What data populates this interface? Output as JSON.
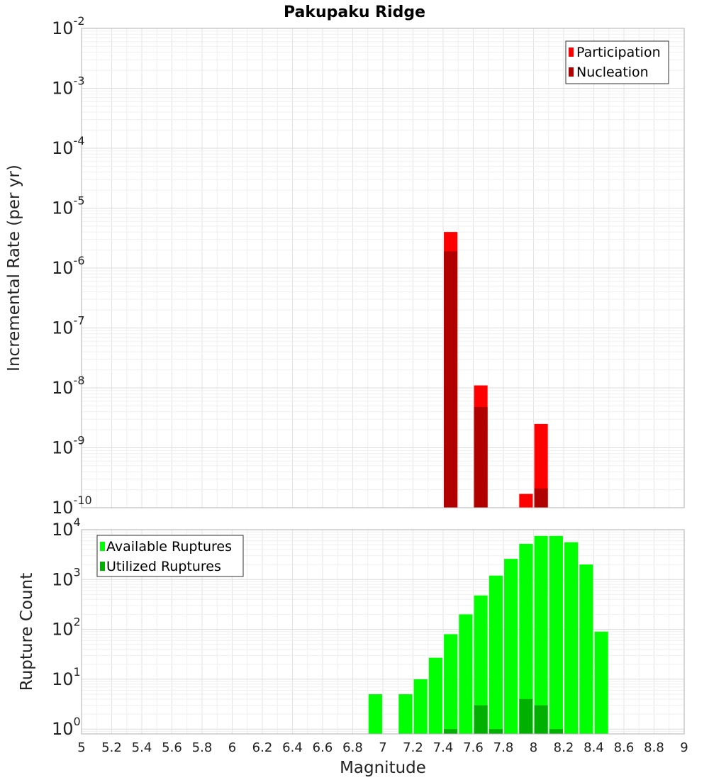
{
  "title": "Pakupaku Ridge",
  "chart_data": [
    {
      "type": "bar",
      "scale": "log",
      "ylabel": "Incremental Rate (per yr)",
      "xlabel": "",
      "xlim": [
        5,
        9
      ],
      "ylim": [
        1e-10,
        0.01
      ],
      "y_ticks": [
        {
          "base": "10",
          "exp": "-10"
        },
        {
          "base": "10",
          "exp": "-9"
        },
        {
          "base": "10",
          "exp": "-8"
        },
        {
          "base": "10",
          "exp": "-7"
        },
        {
          "base": "10",
          "exp": "-6"
        },
        {
          "base": "10",
          "exp": "-5"
        },
        {
          "base": "10",
          "exp": "-4"
        },
        {
          "base": "10",
          "exp": "-3"
        },
        {
          "base": "10",
          "exp": "-2"
        }
      ],
      "legend": "top-right",
      "grid": true,
      "series": [
        {
          "name": "Participation",
          "color": "#ff0000",
          "x": [
            7.45,
            7.65,
            7.95,
            8.05
          ],
          "values": [
            4e-06,
            1.1e-08,
            1.7e-10,
            2.5e-09
          ]
        },
        {
          "name": "Nucleation",
          "color": "#b00000",
          "x": [
            7.45,
            7.65,
            8.05
          ],
          "values": [
            1.9e-06,
            4.8e-09,
            2.1e-10
          ]
        }
      ]
    },
    {
      "type": "bar",
      "scale": "log",
      "ylabel": "Rupture Count",
      "xlabel": "Magnitude",
      "xlim": [
        5,
        9
      ],
      "ylim": [
        0.8,
        10000
      ],
      "y_ticks": [
        {
          "base": "10",
          "exp": "0"
        },
        {
          "base": "10",
          "exp": "1"
        },
        {
          "base": "10",
          "exp": "2"
        },
        {
          "base": "10",
          "exp": "3"
        },
        {
          "base": "10",
          "exp": "4"
        }
      ],
      "x_tick_labels": [
        "5",
        "5.2",
        "5.4",
        "5.6",
        "5.8",
        "6",
        "6.2",
        "6.4",
        "6.6",
        "6.8",
        "7",
        "7.2",
        "7.4",
        "7.6",
        "7.8",
        "8",
        "8.2",
        "8.4",
        "8.6",
        "8.8",
        "9"
      ],
      "legend": "top-left",
      "grid": true,
      "series": [
        {
          "name": "Available Ruptures",
          "color": "#00ff00",
          "x": [
            6.95,
            7.15,
            7.25,
            7.35,
            7.45,
            7.55,
            7.65,
            7.75,
            7.85,
            7.95,
            8.05,
            8.15,
            8.25,
            8.35,
            8.45
          ],
          "values": [
            5,
            5,
            10,
            27,
            80,
            200,
            480,
            1200,
            2600,
            5200,
            7500,
            7500,
            5600,
            2000,
            90
          ]
        },
        {
          "name": "Utilized Ruptures",
          "color": "#00b000",
          "x": [
            7.45,
            7.65,
            7.75,
            7.95,
            8.05,
            8.15
          ],
          "values": [
            1,
            3,
            1,
            4,
            3,
            1
          ]
        }
      ]
    }
  ]
}
